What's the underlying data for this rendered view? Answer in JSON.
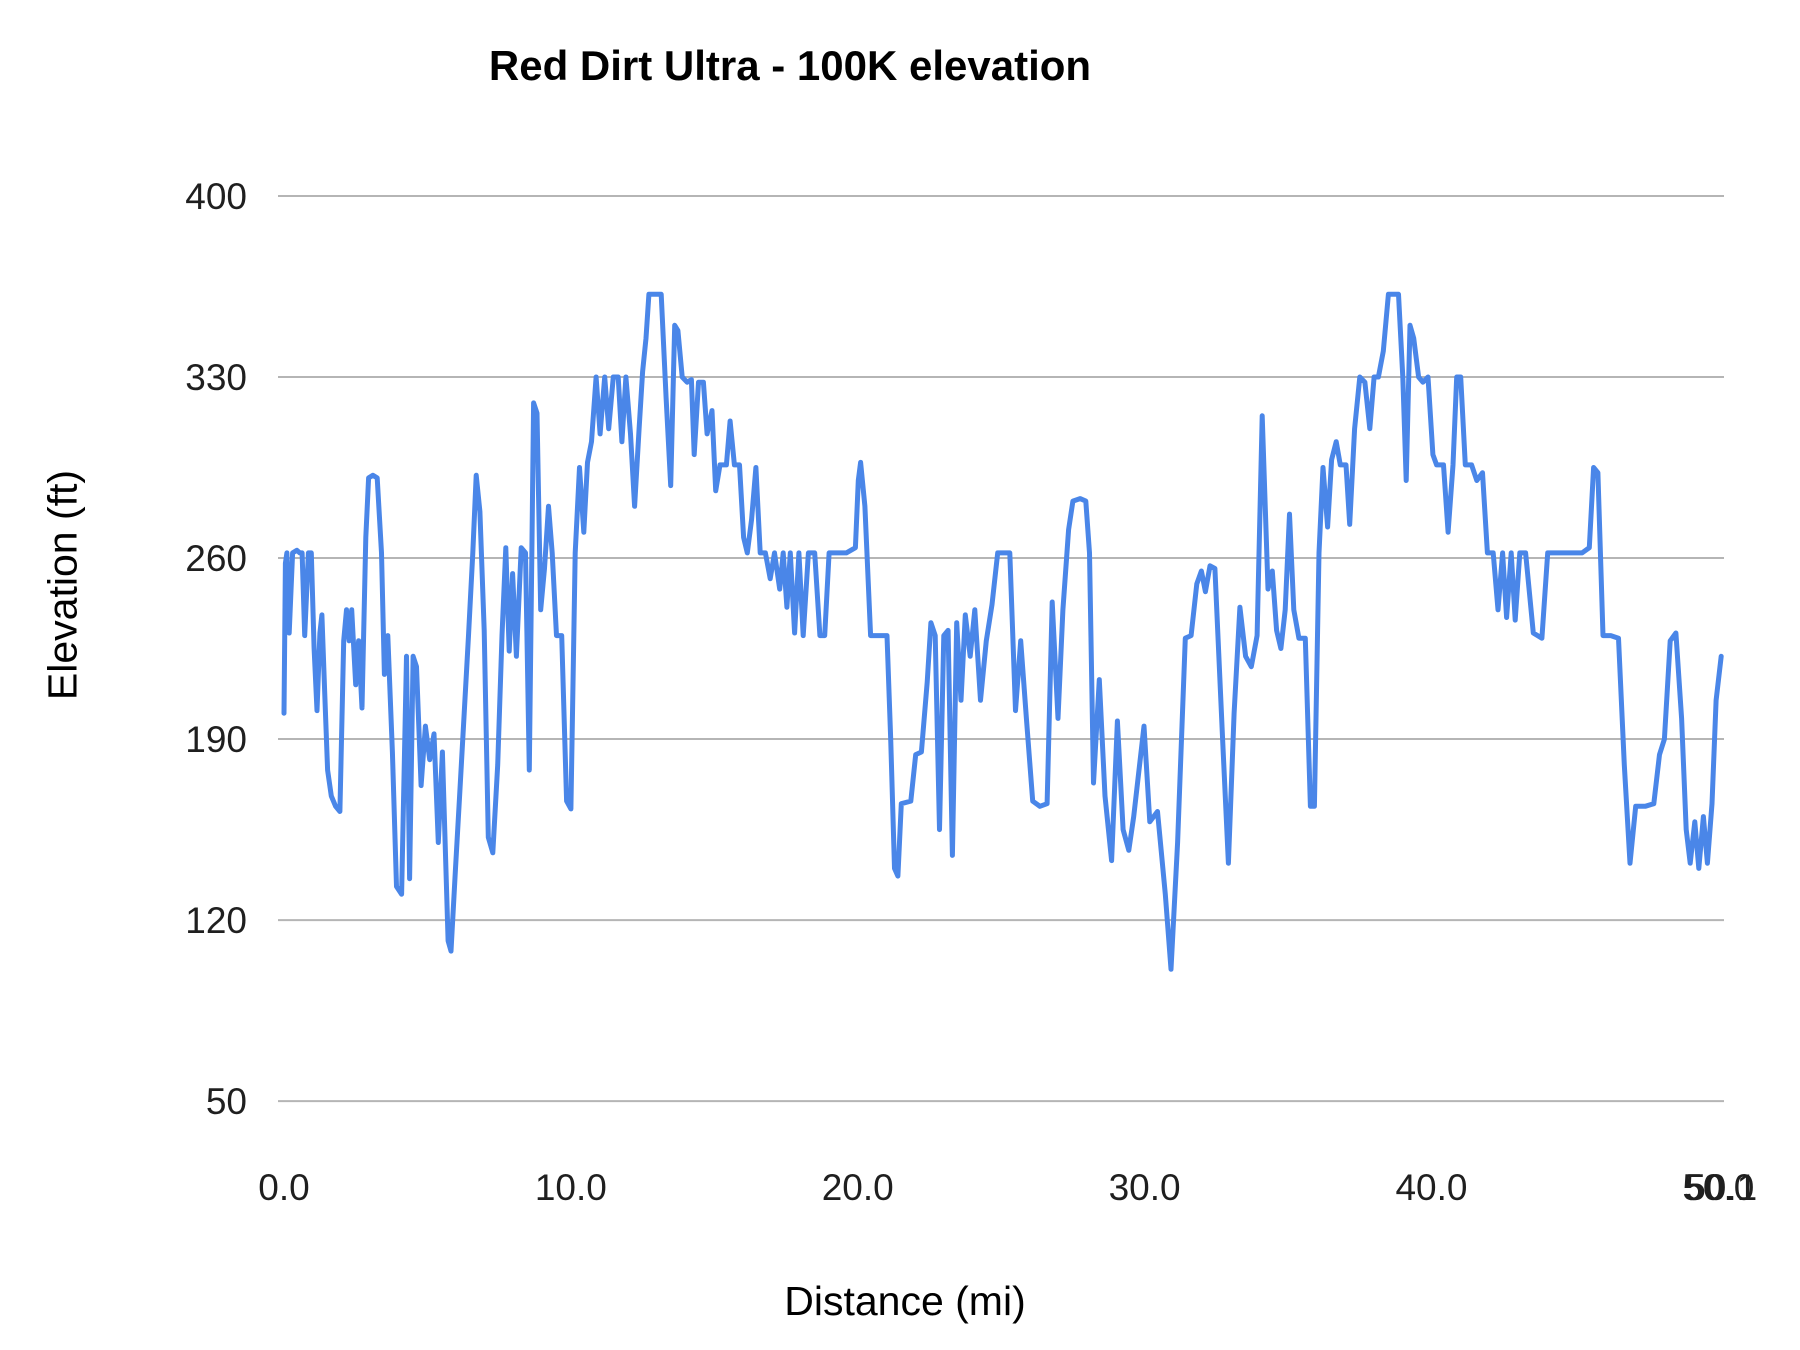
{
  "chart_data": {
    "type": "line",
    "title": "Red Dirt Ultra - 100K elevation",
    "xlabel": "Distance (mi)",
    "ylabel": "Elevation (ft)",
    "xlim": [
      0,
      50.1
    ],
    "ylim": [
      50,
      400
    ],
    "grid": "horizontal",
    "legend": "none",
    "line_color": "#4a86e8",
    "y_ticks": [
      {
        "v": 400,
        "label": "400"
      },
      {
        "v": 330,
        "label": "330"
      },
      {
        "v": 260,
        "label": "260"
      },
      {
        "v": 190,
        "label": "190"
      },
      {
        "v": 120,
        "label": "120"
      },
      {
        "v": 50,
        "label": "50"
      }
    ],
    "x_ticks": [
      {
        "v": 0,
        "label": "0.0"
      },
      {
        "v": 10,
        "label": "10.0"
      },
      {
        "v": 20,
        "label": "20.0"
      },
      {
        "v": 30,
        "label": "30.0"
      },
      {
        "v": 40,
        "label": "40.0"
      },
      {
        "v": 50,
        "label": "50.0"
      },
      {
        "v": 50.1,
        "label": "50.1"
      }
    ],
    "series": [
      {
        "name": "elevation",
        "points": [
          [
            0.0,
            200
          ],
          [
            0.05,
            258
          ],
          [
            0.1,
            262
          ],
          [
            0.18,
            231
          ],
          [
            0.3,
            262
          ],
          [
            0.45,
            263
          ],
          [
            0.55,
            262
          ],
          [
            0.63,
            262
          ],
          [
            0.72,
            230
          ],
          [
            0.85,
            262
          ],
          [
            0.95,
            262
          ],
          [
            1.05,
            225
          ],
          [
            1.15,
            201
          ],
          [
            1.25,
            231
          ],
          [
            1.32,
            238
          ],
          [
            1.42,
            208
          ],
          [
            1.52,
            178
          ],
          [
            1.65,
            168
          ],
          [
            1.8,
            164
          ],
          [
            1.95,
            162
          ],
          [
            2.08,
            228
          ],
          [
            2.18,
            240
          ],
          [
            2.27,
            228
          ],
          [
            2.36,
            240
          ],
          [
            2.5,
            211
          ],
          [
            2.6,
            228
          ],
          [
            2.72,
            202
          ],
          [
            2.85,
            268
          ],
          [
            2.95,
            291
          ],
          [
            3.1,
            292
          ],
          [
            3.25,
            291
          ],
          [
            3.4,
            262
          ],
          [
            3.5,
            215
          ],
          [
            3.62,
            230
          ],
          [
            3.78,
            185
          ],
          [
            3.92,
            133
          ],
          [
            4.1,
            130
          ],
          [
            4.27,
            222
          ],
          [
            4.38,
            136
          ],
          [
            4.5,
            222
          ],
          [
            4.62,
            218
          ],
          [
            4.78,
            172
          ],
          [
            4.93,
            195
          ],
          [
            5.08,
            182
          ],
          [
            5.23,
            192
          ],
          [
            5.38,
            150
          ],
          [
            5.52,
            185
          ],
          [
            5.72,
            112
          ],
          [
            5.82,
            108
          ],
          [
            5.98,
            140
          ],
          [
            6.12,
            168
          ],
          [
            6.28,
            200
          ],
          [
            6.43,
            230
          ],
          [
            6.58,
            262
          ],
          [
            6.7,
            292
          ],
          [
            6.83,
            278
          ],
          [
            6.98,
            232
          ],
          [
            7.12,
            152
          ],
          [
            7.28,
            146
          ],
          [
            7.45,
            180
          ],
          [
            7.6,
            230
          ],
          [
            7.73,
            264
          ],
          [
            7.85,
            224
          ],
          [
            7.97,
            254
          ],
          [
            8.1,
            222
          ],
          [
            8.27,
            264
          ],
          [
            8.42,
            262
          ],
          [
            8.55,
            178
          ],
          [
            8.7,
            320
          ],
          [
            8.82,
            316
          ],
          [
            8.95,
            240
          ],
          [
            9.08,
            256
          ],
          [
            9.22,
            280
          ],
          [
            9.35,
            262
          ],
          [
            9.5,
            230
          ],
          [
            9.68,
            230
          ],
          [
            9.85,
            166
          ],
          [
            10.0,
            163
          ],
          [
            10.15,
            262
          ],
          [
            10.3,
            295
          ],
          [
            10.45,
            270
          ],
          [
            10.58,
            297
          ],
          [
            10.72,
            305
          ],
          [
            10.88,
            330
          ],
          [
            11.02,
            308
          ],
          [
            11.18,
            330
          ],
          [
            11.32,
            310
          ],
          [
            11.48,
            330
          ],
          [
            11.65,
            330
          ],
          [
            11.78,
            305
          ],
          [
            11.92,
            330
          ],
          [
            12.08,
            308
          ],
          [
            12.22,
            280
          ],
          [
            12.38,
            310
          ],
          [
            12.5,
            332
          ],
          [
            12.62,
            345
          ],
          [
            12.72,
            362
          ],
          [
            13.15,
            362
          ],
          [
            13.32,
            322
          ],
          [
            13.48,
            288
          ],
          [
            13.62,
            350
          ],
          [
            13.73,
            348
          ],
          [
            13.88,
            330
          ],
          [
            14.05,
            328
          ],
          [
            14.2,
            329
          ],
          [
            14.3,
            300
          ],
          [
            14.45,
            328
          ],
          [
            14.62,
            328
          ],
          [
            14.75,
            308
          ],
          [
            14.92,
            317
          ],
          [
            15.05,
            286
          ],
          [
            15.2,
            296
          ],
          [
            15.42,
            296
          ],
          [
            15.55,
            313
          ],
          [
            15.7,
            296
          ],
          [
            15.88,
            296
          ],
          [
            16.02,
            268
          ],
          [
            16.15,
            262
          ],
          [
            16.3,
            275
          ],
          [
            16.45,
            295
          ],
          [
            16.6,
            262
          ],
          [
            16.78,
            262
          ],
          [
            16.95,
            252
          ],
          [
            17.1,
            262
          ],
          [
            17.28,
            248
          ],
          [
            17.4,
            262
          ],
          [
            17.53,
            241
          ],
          [
            17.65,
            262
          ],
          [
            17.8,
            231
          ],
          [
            17.95,
            262
          ],
          [
            18.1,
            230
          ],
          [
            18.28,
            262
          ],
          [
            18.5,
            262
          ],
          [
            18.68,
            230
          ],
          [
            18.85,
            230
          ],
          [
            19.0,
            262
          ],
          [
            19.6,
            262
          ],
          [
            19.92,
            264
          ],
          [
            20.02,
            290
          ],
          [
            20.1,
            297
          ],
          [
            20.25,
            280
          ],
          [
            20.45,
            230
          ],
          [
            20.75,
            230
          ],
          [
            21.02,
            230
          ],
          [
            21.15,
            190
          ],
          [
            21.28,
            140
          ],
          [
            21.4,
            137
          ],
          [
            21.52,
            165
          ],
          [
            21.85,
            166
          ],
          [
            22.02,
            184
          ],
          [
            22.22,
            185
          ],
          [
            22.42,
            212
          ],
          [
            22.55,
            235
          ],
          [
            22.7,
            230
          ],
          [
            22.85,
            155
          ],
          [
            23.0,
            230
          ],
          [
            23.15,
            232
          ],
          [
            23.3,
            145
          ],
          [
            23.45,
            235
          ],
          [
            23.6,
            205
          ],
          [
            23.75,
            238
          ],
          [
            23.92,
            222
          ],
          [
            24.08,
            240
          ],
          [
            24.28,
            205
          ],
          [
            24.48,
            228
          ],
          [
            24.68,
            242
          ],
          [
            24.88,
            262
          ],
          [
            25.05,
            262
          ],
          [
            25.3,
            262
          ],
          [
            25.5,
            201
          ],
          [
            25.68,
            228
          ],
          [
            25.88,
            198
          ],
          [
            26.1,
            166
          ],
          [
            26.35,
            164
          ],
          [
            26.6,
            165
          ],
          [
            26.78,
            243
          ],
          [
            26.98,
            198
          ],
          [
            27.15,
            240
          ],
          [
            27.35,
            271
          ],
          [
            27.5,
            282
          ],
          [
            27.75,
            283
          ],
          [
            27.95,
            282
          ],
          [
            28.08,
            262
          ],
          [
            28.22,
            173
          ],
          [
            28.42,
            213
          ],
          [
            28.62,
            168
          ],
          [
            28.85,
            143
          ],
          [
            29.05,
            197
          ],
          [
            29.25,
            155
          ],
          [
            29.45,
            147
          ],
          [
            29.62,
            160
          ],
          [
            29.98,
            195
          ],
          [
            30.18,
            158
          ],
          [
            30.45,
            162
          ],
          [
            30.72,
            130
          ],
          [
            30.92,
            101
          ],
          [
            31.15,
            150
          ],
          [
            31.42,
            229
          ],
          [
            31.62,
            230
          ],
          [
            31.82,
            250
          ],
          [
            31.98,
            255
          ],
          [
            32.12,
            247
          ],
          [
            32.28,
            257
          ],
          [
            32.45,
            256
          ],
          [
            32.72,
            190
          ],
          [
            32.92,
            142
          ],
          [
            33.12,
            200
          ],
          [
            33.32,
            241
          ],
          [
            33.52,
            222
          ],
          [
            33.72,
            218
          ],
          [
            33.92,
            230
          ],
          [
            34.1,
            315
          ],
          [
            34.3,
            248
          ],
          [
            34.45,
            255
          ],
          [
            34.6,
            232
          ],
          [
            34.75,
            225
          ],
          [
            34.9,
            240
          ],
          [
            35.05,
            277
          ],
          [
            35.2,
            240
          ],
          [
            35.38,
            229
          ],
          [
            35.6,
            229
          ],
          [
            35.78,
            164
          ],
          [
            35.92,
            164
          ],
          [
            36.08,
            262
          ],
          [
            36.22,
            295
          ],
          [
            36.38,
            272
          ],
          [
            36.52,
            298
          ],
          [
            36.68,
            305
          ],
          [
            36.82,
            296
          ],
          [
            37.02,
            296
          ],
          [
            37.15,
            273
          ],
          [
            37.32,
            310
          ],
          [
            37.5,
            330
          ],
          [
            37.68,
            328
          ],
          [
            37.85,
            310
          ],
          [
            38.0,
            330
          ],
          [
            38.15,
            330
          ],
          [
            38.32,
            340
          ],
          [
            38.5,
            362
          ],
          [
            38.85,
            362
          ],
          [
            39.0,
            330
          ],
          [
            39.12,
            290
          ],
          [
            39.25,
            350
          ],
          [
            39.38,
            345
          ],
          [
            39.55,
            330
          ],
          [
            39.7,
            328
          ],
          [
            39.88,
            330
          ],
          [
            40.05,
            300
          ],
          [
            40.18,
            296
          ],
          [
            40.42,
            296
          ],
          [
            40.58,
            270
          ],
          [
            40.75,
            296
          ],
          [
            40.88,
            330
          ],
          [
            41.02,
            330
          ],
          [
            41.18,
            296
          ],
          [
            41.4,
            296
          ],
          [
            41.58,
            290
          ],
          [
            41.78,
            293
          ],
          [
            41.95,
            262
          ],
          [
            42.15,
            262
          ],
          [
            42.32,
            240
          ],
          [
            42.48,
            262
          ],
          [
            42.62,
            237
          ],
          [
            42.78,
            262
          ],
          [
            42.92,
            236
          ],
          [
            43.08,
            262
          ],
          [
            43.28,
            262
          ],
          [
            43.55,
            231
          ],
          [
            43.85,
            229
          ],
          [
            44.05,
            262
          ],
          [
            44.4,
            262
          ],
          [
            44.85,
            262
          ],
          [
            45.25,
            262
          ],
          [
            45.5,
            264
          ],
          [
            45.65,
            295
          ],
          [
            45.8,
            293
          ],
          [
            45.98,
            230
          ],
          [
            46.25,
            230
          ],
          [
            46.52,
            229
          ],
          [
            46.72,
            180
          ],
          [
            46.92,
            142
          ],
          [
            47.12,
            164
          ],
          [
            47.45,
            164
          ],
          [
            47.75,
            165
          ],
          [
            47.95,
            184
          ],
          [
            48.12,
            190
          ],
          [
            48.32,
            228
          ],
          [
            48.52,
            231
          ],
          [
            48.72,
            198
          ],
          [
            48.88,
            155
          ],
          [
            49.02,
            142
          ],
          [
            49.18,
            158
          ],
          [
            49.32,
            140
          ],
          [
            49.48,
            160
          ],
          [
            49.62,
            142
          ],
          [
            49.78,
            165
          ],
          [
            49.92,
            205
          ],
          [
            50.1,
            222
          ]
        ]
      }
    ]
  }
}
